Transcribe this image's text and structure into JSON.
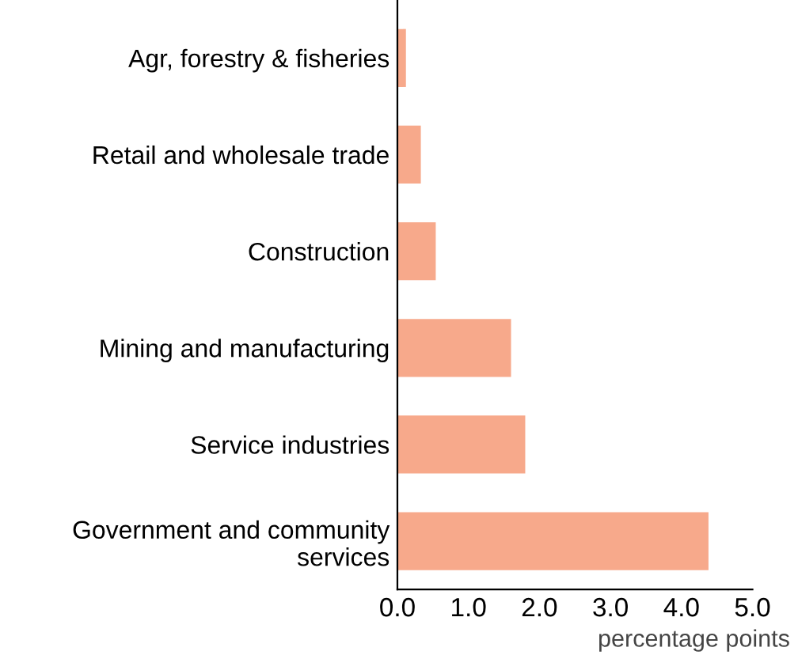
{
  "chart_data": {
    "type": "bar",
    "orientation": "horizontal",
    "xlabel": "percentage points",
    "categories": [
      "Agr, forestry & fisheries",
      "Retail and wholesale trade",
      "Construction",
      "Mining and manufacturing",
      "Service industries",
      "Government and community services"
    ],
    "values": [
      0.12,
      0.33,
      0.54,
      1.6,
      1.8,
      4.38
    ],
    "color": "#f7a98b",
    "xlim": [
      0,
      5
    ],
    "xticks": [
      {
        "value": 0,
        "label": "0.0"
      },
      {
        "value": 1,
        "label": "1.0"
      },
      {
        "value": 2,
        "label": "2.0"
      },
      {
        "value": 3,
        "label": "3.0"
      },
      {
        "value": 4,
        "label": "4.0"
      },
      {
        "value": 5,
        "label": "5.0"
      }
    ],
    "grid": false
  }
}
